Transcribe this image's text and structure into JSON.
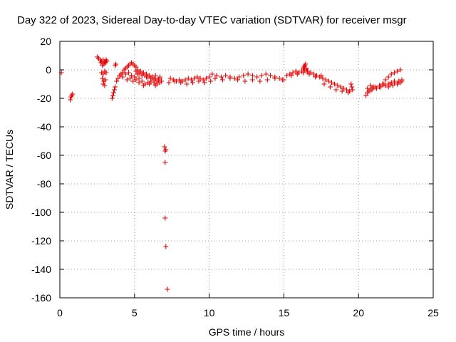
{
  "chart_data": {
    "type": "scatter",
    "title": "Day 322 of 2023, Sidereal Day-to-day VTEC variation (SDTVAR) for receiver msgr",
    "xlabel": "GPS time / hours",
    "ylabel": "SDTVAR / TECUs",
    "xlim": [
      0,
      25
    ],
    "ylim": [
      -160,
      20
    ],
    "xticks": [
      0,
      5,
      10,
      15,
      20,
      25
    ],
    "xtick_labels": [
      "0",
      "5",
      "10",
      "15",
      "20",
      "25"
    ],
    "yticks": [
      20,
      0,
      -20,
      -40,
      -60,
      -80,
      -100,
      -120,
      -140,
      -160
    ],
    "ytick_labels": [
      "20",
      "0",
      "-20",
      "-40",
      "-60",
      "-80",
      "-100",
      "-120",
      "-140",
      "-160"
    ],
    "grid": true,
    "marker": "+",
    "color": "#e00000",
    "series": [
      {
        "name": "SDTVAR",
        "x": [
          0.1,
          0.7,
          0.75,
          0.8,
          0.85,
          2.5,
          2.6,
          2.7,
          2.8,
          2.9,
          3.0,
          3.1,
          2.75,
          2.85,
          2.95,
          3.05,
          3.15,
          2.8,
          2.9,
          3.0,
          3.1,
          2.85,
          2.95,
          3.05,
          2.9,
          3.0,
          3.5,
          3.55,
          3.6,
          3.65,
          3.7,
          3.7,
          3.75,
          3.8,
          3.9,
          4.0,
          4.1,
          4.2,
          4.3,
          4.4,
          4.5,
          4.6,
          4.7,
          4.8,
          4.9,
          5.0,
          5.1,
          4.2,
          4.4,
          4.6,
          4.8,
          5.0,
          5.2,
          4.5,
          4.7,
          4.9,
          5.1,
          5.3,
          5.1,
          5.2,
          5.3,
          5.4,
          5.5,
          5.6,
          5.7,
          5.8,
          5.9,
          6.0,
          6.1,
          6.2,
          6.3,
          6.4,
          6.5,
          6.6,
          6.7,
          6.8,
          5.3,
          5.5,
          5.7,
          5.9,
          6.1,
          6.3,
          6.5,
          6.7,
          5.5,
          5.8,
          6.1,
          6.4,
          6.7,
          5.6,
          6.0,
          6.4,
          7.0,
          7.05,
          7.1,
          7.05,
          7.05,
          7.1,
          7.2,
          7.4,
          7.6,
          7.8,
          8.0,
          8.2,
          8.4,
          8.6,
          8.8,
          9.0,
          9.2,
          9.4,
          9.6,
          9.8,
          10.0,
          7.3,
          7.7,
          8.1,
          8.5,
          8.9,
          9.3,
          9.7,
          10.1,
          10.2,
          10.5,
          10.8,
          11.1,
          11.4,
          11.7,
          12.0,
          12.3,
          12.6,
          12.9,
          13.2,
          13.5,
          13.8,
          14.1,
          14.4,
          14.7,
          15.0,
          10.4,
          10.9,
          11.4,
          11.9,
          12.4,
          12.9,
          13.4,
          13.9,
          14.4,
          14.9,
          15.2,
          15.4,
          15.6,
          15.8,
          16.0,
          16.2,
          16.4,
          16.6,
          16.8,
          17.0,
          17.2,
          17.4,
          16.3,
          16.35,
          16.4,
          16.45,
          16.5,
          16.55,
          15.5,
          15.9,
          16.3,
          16.7,
          17.1,
          17.5,
          17.6,
          17.8,
          18.0,
          18.2,
          18.4,
          18.6,
          18.8,
          19.0,
          19.2,
          19.4,
          17.7,
          18.1,
          18.5,
          18.9,
          19.3,
          19.5,
          19.55,
          19.6,
          20.5,
          20.6,
          20.7,
          20.8,
          20.9,
          21.0,
          21.2,
          21.4,
          21.6,
          21.8,
          22.0,
          22.2,
          22.4,
          22.6,
          22.8,
          20.6,
          20.9,
          21.2,
          21.5,
          21.8,
          22.1,
          22.4,
          22.7,
          20.8,
          21.1,
          21.4,
          21.7,
          22.0,
          22.3,
          22.6,
          22.9,
          21.8,
          22.0,
          22.2,
          22.4,
          22.6,
          22.8,
          22.9
        ],
        "y": [
          -2,
          -21,
          -19,
          -18,
          -17,
          9,
          8,
          7,
          6,
          7,
          6,
          7,
          5,
          3,
          4,
          5,
          6,
          -2,
          -3,
          -1,
          -2,
          -6,
          -8,
          -7,
          -10,
          -11,
          -20,
          -18,
          -16,
          -14,
          -12,
          3,
          4,
          -8,
          -6,
          -4,
          -3,
          -2,
          0,
          1,
          2,
          3,
          4,
          5,
          4,
          3,
          2,
          -5,
          -3,
          -2,
          -4,
          -5,
          -3,
          -7,
          -6,
          -8,
          -7,
          -6,
          -1,
          0,
          -2,
          -1,
          -3,
          -2,
          -4,
          -3,
          -5,
          -4,
          -6,
          -5,
          -7,
          -6,
          -8,
          -7,
          -6,
          -8,
          -9,
          -8,
          -10,
          -9,
          -8,
          -9,
          -10,
          -9,
          -4,
          -5,
          -6,
          -4,
          -5,
          -11,
          -10,
          -11,
          -54,
          -57,
          -56,
          -65,
          -104,
          -124,
          -154,
          -6,
          -7,
          -8,
          -7,
          -8,
          -7,
          -6,
          -7,
          -6,
          -5,
          -6,
          -7,
          -6,
          -5,
          -9,
          -8,
          -9,
          -10,
          -9,
          -8,
          -9,
          -8,
          -3,
          -4,
          -5,
          -4,
          -5,
          -6,
          -5,
          -4,
          -3,
          -4,
          -5,
          -4,
          -3,
          -4,
          -5,
          -6,
          -7,
          -6,
          -7,
          -6,
          -7,
          -8,
          -7,
          -8,
          -7,
          -6,
          -7,
          -4,
          -3,
          -2,
          -1,
          -2,
          -1,
          0,
          -1,
          -2,
          -3,
          -4,
          -5,
          1,
          2,
          3,
          4,
          1,
          -1,
          -4,
          -3,
          -2,
          -3,
          -5,
          -4,
          -6,
          -7,
          -8,
          -9,
          -10,
          -11,
          -12,
          -13,
          -14,
          -15,
          -10,
          -12,
          -14,
          -15,
          -16,
          -10,
          -12,
          -14,
          -18,
          -16,
          -15,
          -14,
          -13,
          -12,
          -13,
          -12,
          -10,
          -11,
          -10,
          -9,
          -8,
          -10,
          -9,
          -13,
          -14,
          -13,
          -12,
          -11,
          -10,
          -9,
          -8,
          -11,
          -12,
          -11,
          -10,
          -12,
          -11,
          -10,
          -8,
          -7,
          -5,
          -3,
          -2,
          -1,
          0,
          -7
        ]
      }
    ]
  }
}
